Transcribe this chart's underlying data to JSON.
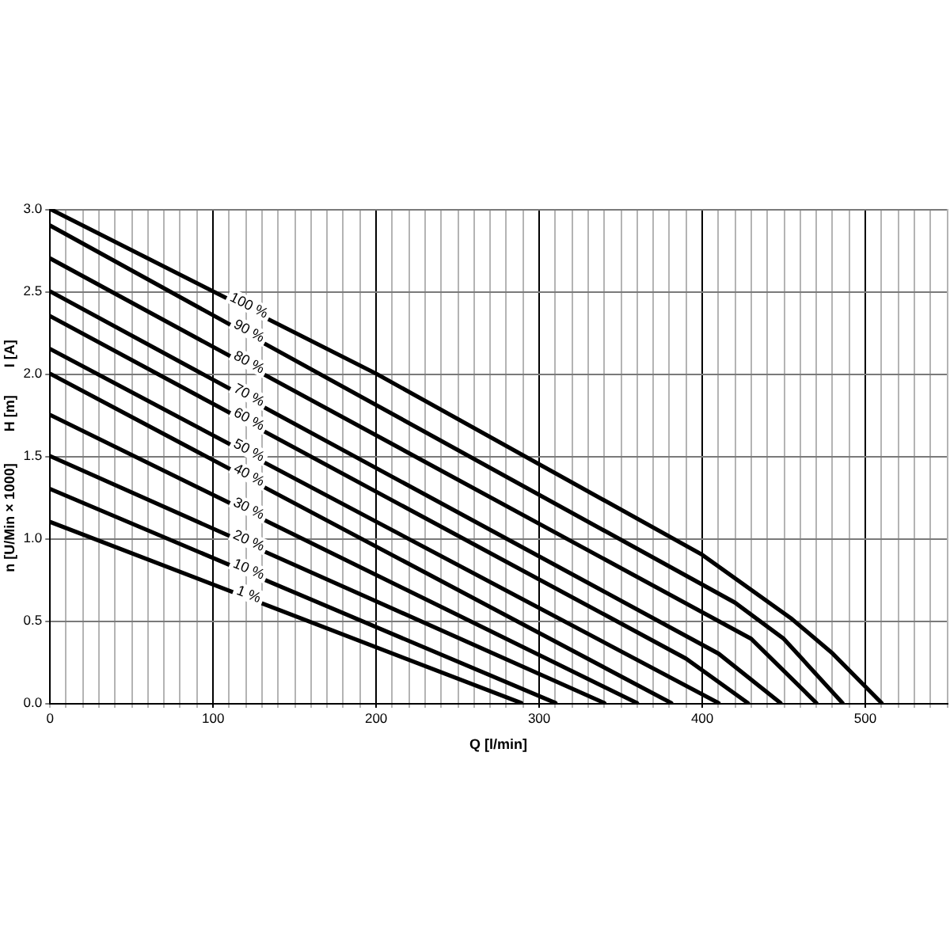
{
  "chart_data": {
    "type": "line",
    "xlabel": "Q [l/min]",
    "ylabel": "n [U/Min × 1000]        H [m]       I [A]",
    "xlim": [
      0,
      550
    ],
    "ylim": [
      0,
      3
    ],
    "xticks": [
      0,
      {
        "value": 10,
        "label": null
      },
      {
        "value": 20,
        "label": null
      },
      {
        "value": 30,
        "label": null
      },
      {
        "value": 40,
        "label": null
      },
      {
        "value": 50,
        "label": null
      },
      {
        "value": 60,
        "label": null
      },
      {
        "value": 70,
        "label": null
      },
      {
        "value": 80,
        "label": null
      },
      {
        "value": 90,
        "label": null
      },
      100,
      {
        "value": 110,
        "label": null
      },
      {
        "value": 120,
        "label": null
      },
      {
        "value": 130,
        "label": null
      },
      {
        "value": 140,
        "label": null
      },
      {
        "value": 150,
        "label": null
      },
      {
        "value": 160,
        "label": null
      },
      {
        "value": 170,
        "label": null
      },
      {
        "value": 180,
        "label": null
      },
      {
        "value": 190,
        "label": null
      },
      200,
      {
        "value": 210,
        "label": null
      },
      {
        "value": 220,
        "label": null
      },
      {
        "value": 230,
        "label": null
      },
      {
        "value": 240,
        "label": null
      },
      {
        "value": 250,
        "label": null
      },
      {
        "value": 260,
        "label": null
      },
      {
        "value": 270,
        "label": null
      },
      {
        "value": 280,
        "label": null
      },
      {
        "value": 290,
        "label": null
      },
      300,
      {
        "value": 310,
        "label": null
      },
      {
        "value": 320,
        "label": null
      },
      {
        "value": 330,
        "label": null
      },
      {
        "value": 340,
        "label": null
      },
      {
        "value": 350,
        "label": null
      },
      {
        "value": 360,
        "label": null
      },
      {
        "value": 370,
        "label": null
      },
      {
        "value": 380,
        "label": null
      },
      {
        "value": 390,
        "label": null
      },
      400,
      {
        "value": 410,
        "label": null
      },
      {
        "value": 420,
        "label": null
      },
      {
        "value": 430,
        "label": null
      },
      {
        "value": 440,
        "label": null
      },
      {
        "value": 450,
        "label": null
      },
      {
        "value": 460,
        "label": null
      },
      {
        "value": 470,
        "label": null
      },
      {
        "value": 480,
        "label": null
      },
      {
        "value": 490,
        "label": null
      },
      500,
      {
        "value": 510,
        "label": null
      },
      {
        "value": 520,
        "label": null
      },
      {
        "value": 530,
        "label": null
      },
      {
        "value": 540,
        "label": null
      },
      {
        "value": 550,
        "label": null
      }
    ],
    "yticks": [
      {
        "value": 0,
        "label": "0.0"
      },
      0.5,
      {
        "value": 1,
        "label": "1.0"
      },
      1.5,
      {
        "value": 2,
        "label": "2.0"
      },
      2.5,
      {
        "value": 3,
        "label": "3.0"
      }
    ],
    "grid": true,
    "series": [
      {
        "name": "100 %",
        "color": "#000000",
        "x": [
          0,
          200,
          400,
          455,
          480,
          510
        ],
        "values": [
          3.0,
          2.0,
          0.9,
          0.51,
          0.3,
          0
        ]
      },
      {
        "name": "90 %",
        "color": "#000000",
        "x": [
          0,
          420,
          450,
          486
        ],
        "values": [
          2.9,
          0.61,
          0.39,
          0
        ]
      },
      {
        "name": "80 %",
        "color": "#000000",
        "x": [
          0,
          430,
          470
        ],
        "values": [
          2.7,
          0.39,
          0
        ]
      },
      {
        "name": "70 %",
        "color": "#000000",
        "x": [
          0,
          410,
          448
        ],
        "values": [
          2.5,
          0.3,
          0
        ]
      },
      {
        "name": "60 %",
        "color": "#000000",
        "x": [
          0,
          390,
          428
        ],
        "values": [
          2.35,
          0.27,
          0
        ]
      },
      {
        "name": "50 %",
        "color": "#000000",
        "x": [
          0,
          410
        ],
        "values": [
          2.15,
          0
        ]
      },
      {
        "name": "40 %",
        "color": "#000000",
        "x": [
          0,
          381
        ],
        "values": [
          2.0,
          0
        ]
      },
      {
        "name": "30 %",
        "color": "#000000",
        "x": [
          0,
          360
        ],
        "values": [
          1.75,
          0
        ]
      },
      {
        "name": "20 %",
        "color": "#000000",
        "x": [
          0,
          340
        ],
        "values": [
          1.5,
          0
        ]
      },
      {
        "name": "10 %",
        "color": "#000000",
        "x": [
          0,
          310
        ],
        "values": [
          1.3,
          0
        ]
      },
      {
        "name": "1 %",
        "color": "#000000",
        "x": [
          0,
          289
        ],
        "values": [
          1.1,
          0
        ]
      }
    ]
  }
}
